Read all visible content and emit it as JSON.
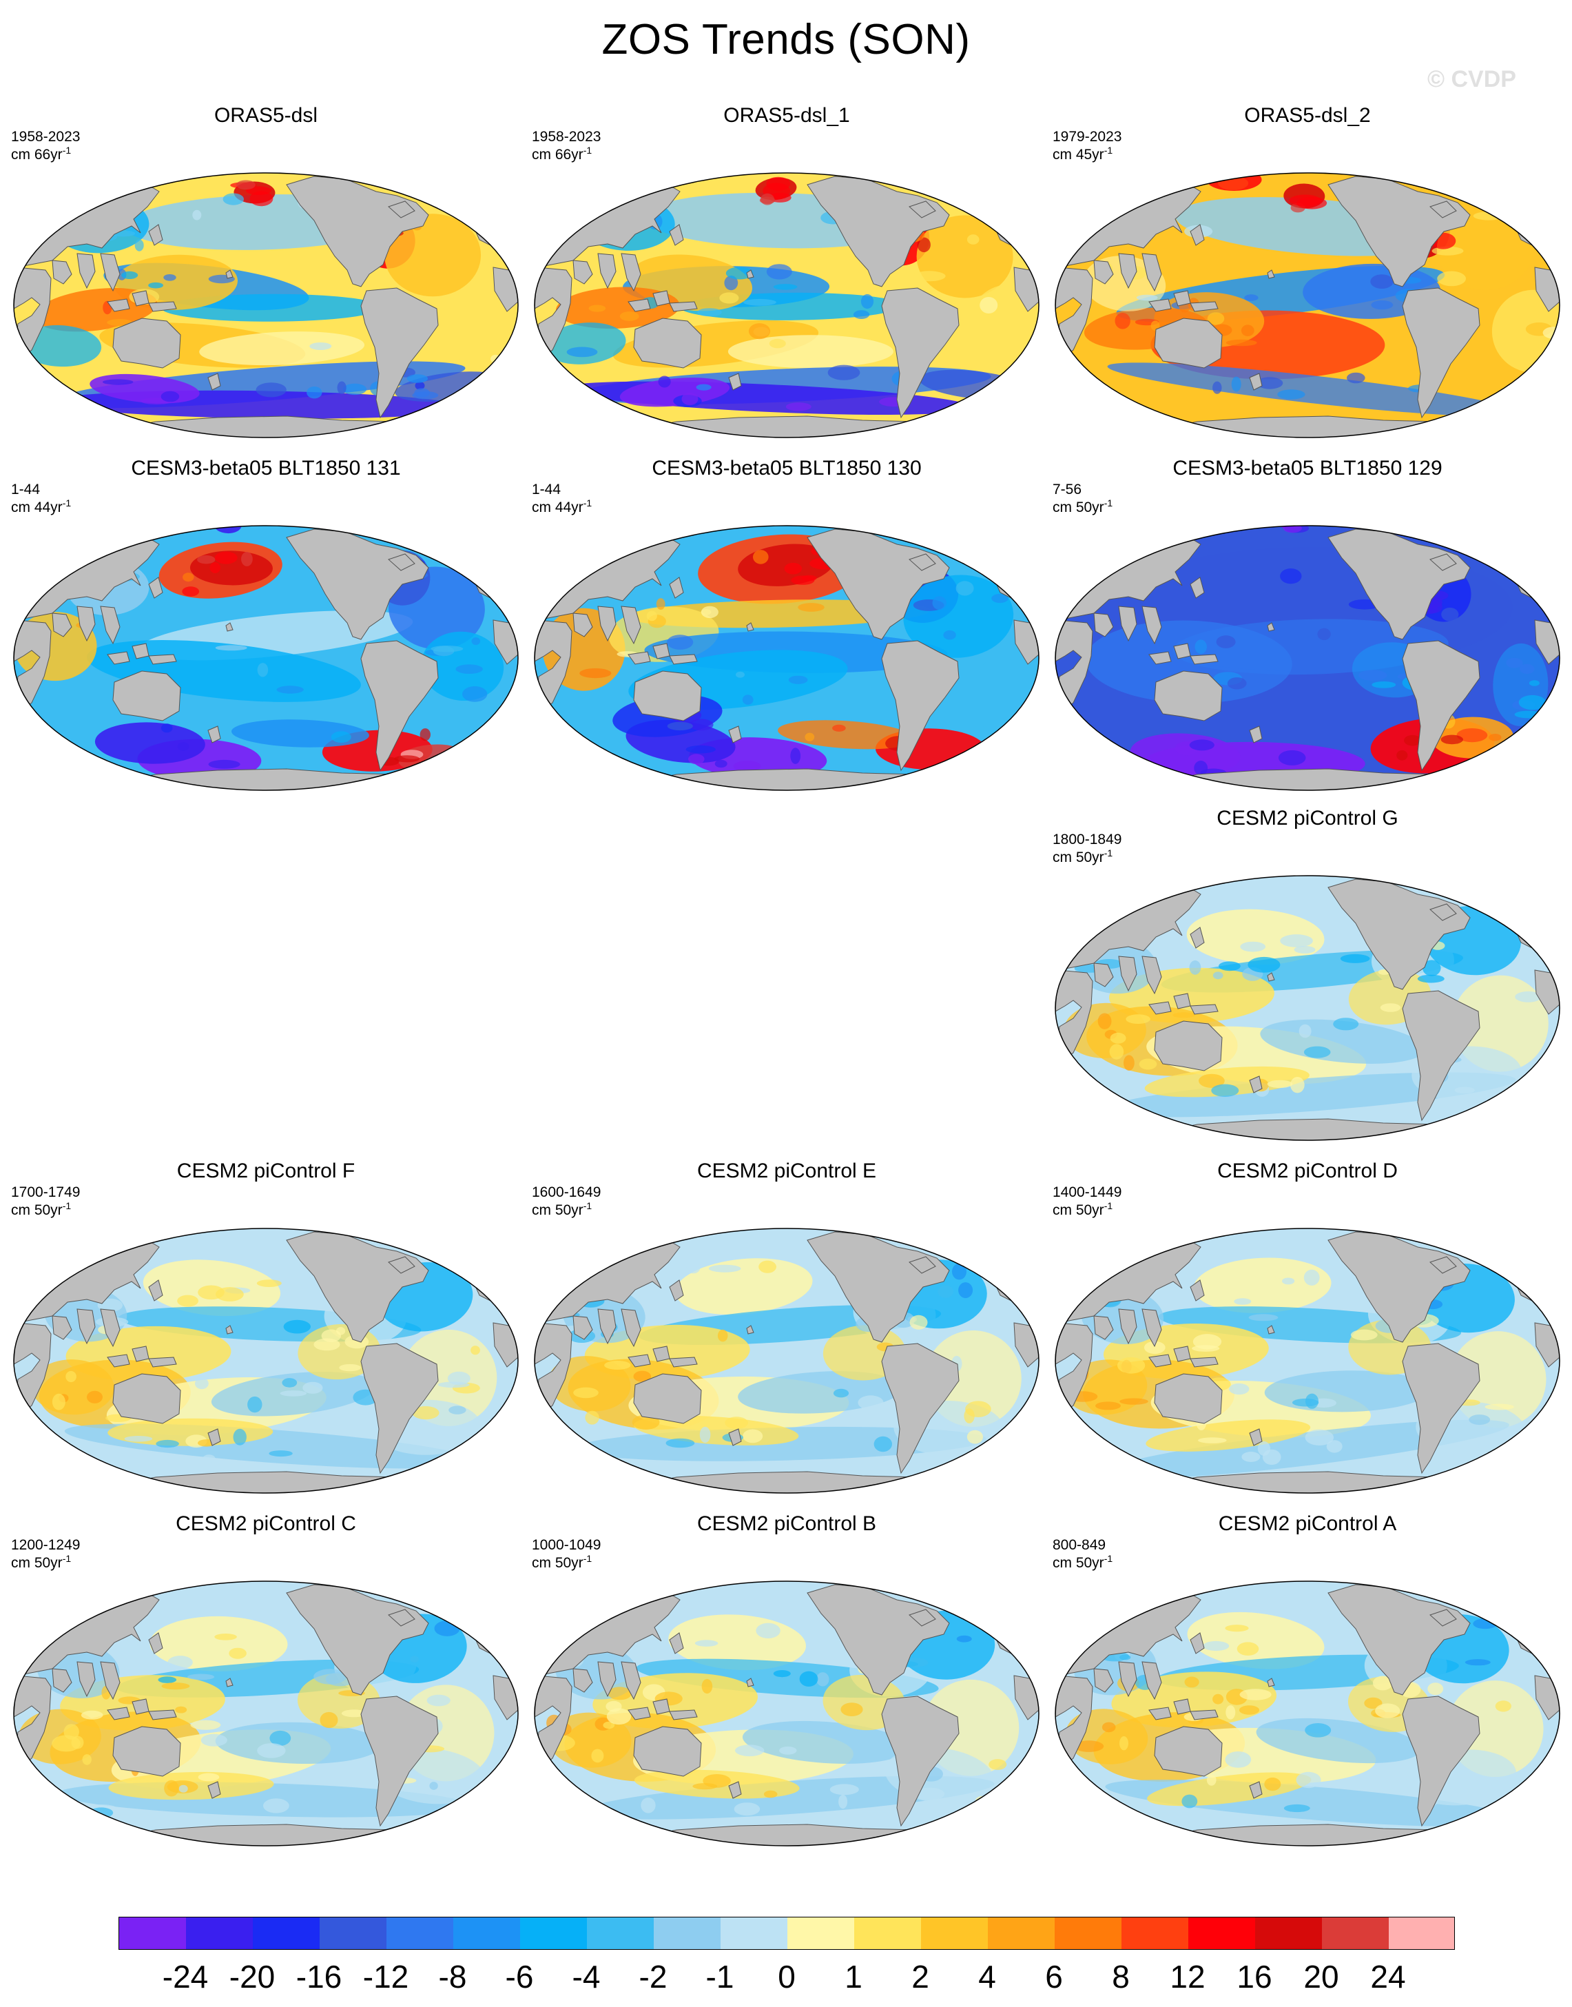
{
  "figure": {
    "title": "ZOS Trends (SON)",
    "credit": "© CVDP"
  },
  "panels": [
    {
      "title": "ORAS5-dsl",
      "period": "1958-2023",
      "units_prefix": "cm 66yr",
      "units_exp": "-1",
      "theme": "obs"
    },
    {
      "title": "ORAS5-dsl_1",
      "period": "1958-2023",
      "units_prefix": "cm 66yr",
      "units_exp": "-1",
      "theme": "obs"
    },
    {
      "title": "ORAS5-dsl_2",
      "period": "1979-2023",
      "units_prefix": "cm 45yr",
      "units_exp": "-1",
      "theme": "obs2"
    },
    {
      "title": "CESM3-beta05 BLT1850 131",
      "period": "1-44",
      "units_prefix": "cm 44yr",
      "units_exp": "-1",
      "theme": "cesm3a"
    },
    {
      "title": "CESM3-beta05 BLT1850 130",
      "period": "1-44",
      "units_prefix": "cm 44yr",
      "units_exp": "-1",
      "theme": "cesm3b"
    },
    {
      "title": "CESM3-beta05 BLT1850 129",
      "period": "7-56",
      "units_prefix": "cm 50yr",
      "units_exp": "-1",
      "theme": "cesm3c"
    },
    {
      "title": "CESM2 piControl G",
      "period": "1800-1849",
      "units_prefix": "cm 50yr",
      "units_exp": "-1",
      "theme": "pic"
    },
    {
      "title": "CESM2 piControl F",
      "period": "1700-1749",
      "units_prefix": "cm 50yr",
      "units_exp": "-1",
      "theme": "pic"
    },
    {
      "title": "CESM2 piControl E",
      "period": "1600-1649",
      "units_prefix": "cm 50yr",
      "units_exp": "-1",
      "theme": "pic"
    },
    {
      "title": "CESM2 piControl D",
      "period": "1400-1449",
      "units_prefix": "cm 50yr",
      "units_exp": "-1",
      "theme": "pic"
    },
    {
      "title": "CESM2 piControl C",
      "period": "1200-1249",
      "units_prefix": "cm 50yr",
      "units_exp": "-1",
      "theme": "pic"
    },
    {
      "title": "CESM2 piControl B",
      "period": "1000-1049",
      "units_prefix": "cm 50yr",
      "units_exp": "-1",
      "theme": "pic"
    },
    {
      "title": "CESM2 piControl A",
      "period": "800-849",
      "units_prefix": "cm 50yr",
      "units_exp": "-1",
      "theme": "pic"
    }
  ],
  "colorbar": {
    "colors": [
      "#7a22f4",
      "#3a1fef",
      "#1a2bf4",
      "#3458dc",
      "#2f78f0",
      "#1d92f5",
      "#06b0f7",
      "#3cbcf2",
      "#8ecdf0",
      "#bde2f4",
      "#fff7a8",
      "#ffe45a",
      "#ffc527",
      "#ffa416",
      "#ff7b0a",
      "#ff4010",
      "#ff0008",
      "#d60a0a",
      "#db3c38",
      "#ffb0b0"
    ],
    "labels": [
      "-24",
      "-20",
      "-16",
      "-12",
      "-8",
      "-6",
      "-4",
      "-2",
      "-1",
      "0",
      "1",
      "2",
      "4",
      "6",
      "8",
      "12",
      "16",
      "20",
      "24"
    ]
  }
}
